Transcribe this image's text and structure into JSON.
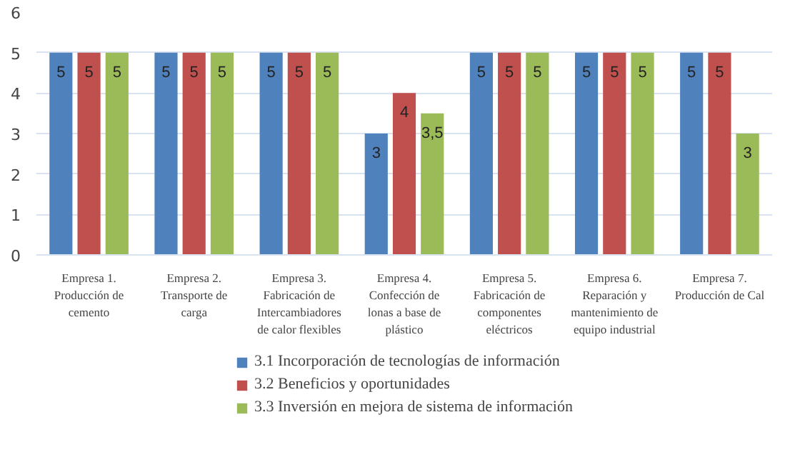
{
  "chart_data": {
    "type": "bar",
    "categories": [
      "Empresa 1. Producción de cemento",
      "Empresa 2. Transporte de carga",
      "Empresa 3. Fabricación de Intercambiadores de calor flexibles",
      "Empresa 4. Confección de lonas a base de plástico",
      "Empresa 5. Fabricación de componentes eléctricos",
      "Empresa 6. Reparación y mantenimiento de equipo industrial",
      "Empresa 7. Producción de Cal"
    ],
    "series": [
      {
        "name": "3.1 Incorporación de tecnologías de información",
        "color": "#4f81bd",
        "values": [
          5,
          5,
          5,
          3,
          5,
          5,
          5
        ],
        "value_labels": [
          "5",
          "5",
          "5",
          "3",
          "5",
          "5",
          "5"
        ]
      },
      {
        "name": "3.2 Beneficios y oportunidades",
        "color": "#c0504d",
        "values": [
          5,
          5,
          5,
          4,
          5,
          5,
          5
        ],
        "value_labels": [
          "5",
          "5",
          "5",
          "4",
          "5",
          "5",
          "5"
        ]
      },
      {
        "name": "3.3 Inversión en mejora de sistema de información",
        "color": "#9bbb59",
        "values": [
          5,
          5,
          5,
          3.5,
          5,
          5,
          3
        ],
        "value_labels": [
          "5",
          "5",
          "5",
          "3,5",
          "5",
          "5",
          "3"
        ]
      }
    ],
    "ylim": [
      0,
      6
    ],
    "yticks": [
      0,
      1,
      2,
      3,
      4,
      5,
      6
    ],
    "grid": "y",
    "legend": "bottom"
  }
}
